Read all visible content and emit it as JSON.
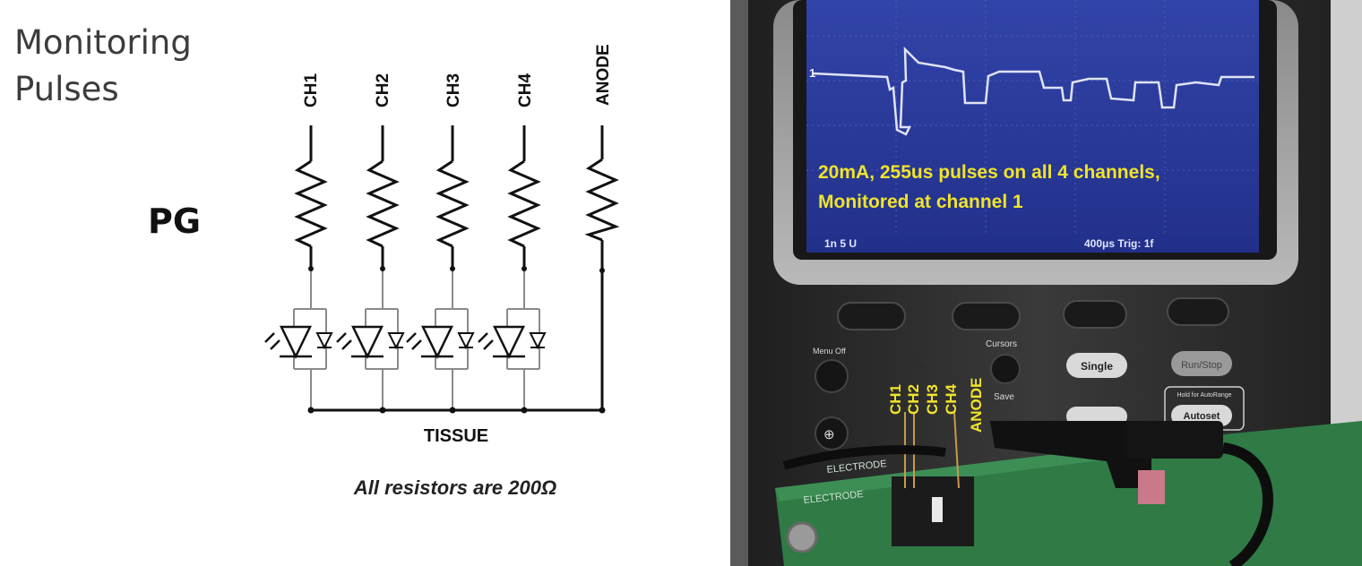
{
  "diagram": {
    "title_line1": "Monitoring",
    "title_line2": "Pulses",
    "device_label": "PG",
    "channels": [
      "CH1",
      "CH2",
      "CH3",
      "CH4",
      "ANODE"
    ],
    "bus_label": "TISSUE",
    "note": "All resistors are 200Ω"
  },
  "photo": {
    "screen_caption_line1": "20mA, 255us pulses on all 4 channels,",
    "screen_caption_line2": "Monitored at channel 1",
    "screen_status_left": "1n 5 U",
    "screen_status_right": "400μs  Trig: 1f",
    "button_cursors": "Cursors",
    "button_save": "Save",
    "button_single": "Single",
    "button_run_stop": "Run/Stop",
    "button_menu_off": "Menu Off",
    "button_autoset": "Autoset",
    "button_hold_for_autorange": "Hold for AutoRange",
    "pin_labels": [
      "CH1",
      "CH2",
      "CH3",
      "CH4",
      "ANODE"
    ],
    "board_label": "ELECTRODE",
    "colors": {
      "caption": "#f0e32b",
      "screen": "#2a3a9a",
      "trace": "#d8dcf0",
      "board": "#2f7a45"
    }
  }
}
